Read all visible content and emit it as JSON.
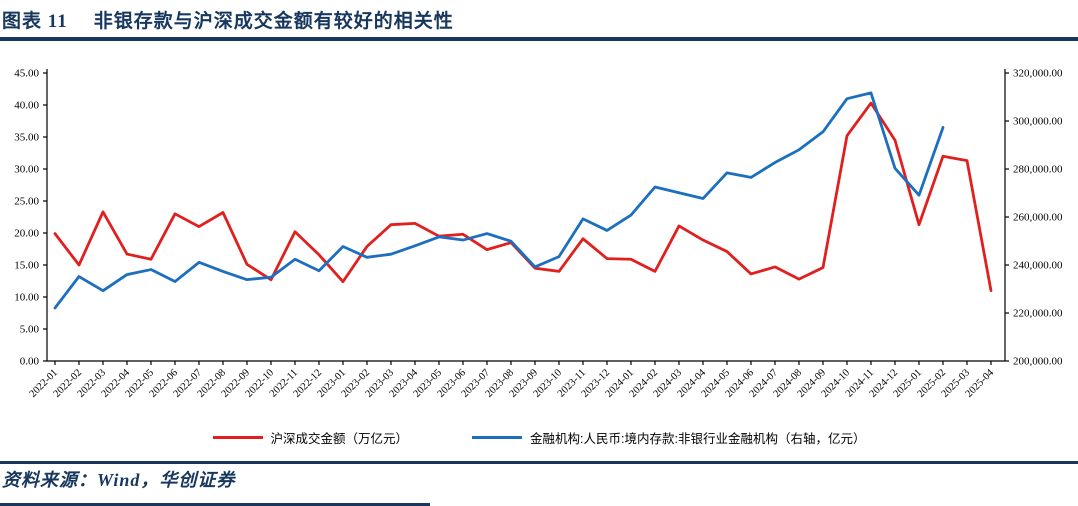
{
  "header": {
    "chart_label": "图表 11",
    "title": "非银存款与沪深成交金额有较好的相关性"
  },
  "footer": {
    "source": "资料来源：Wind，华创证券"
  },
  "colors": {
    "accent_navy": "#17375E",
    "red_series": "#E0201E",
    "blue_series": "#1C6FBF",
    "axis_line": "#000000"
  },
  "chart_data": {
    "type": "line",
    "title": "非银存款与沪深成交金额有较好的相关性",
    "grid": false,
    "legend_position": "bottom",
    "categories": [
      "2022-01",
      "2022-02",
      "2022-03",
      "2022-04",
      "2022-05",
      "2022-06",
      "2022-07",
      "2022-08",
      "2022-09",
      "2022-10",
      "2022-11",
      "2022-12",
      "2023-01",
      "2023-02",
      "2023-03",
      "2023-04",
      "2023-05",
      "2023-06",
      "2023-07",
      "2023-08",
      "2023-09",
      "2023-10",
      "2023-11",
      "2023-12",
      "2024-01",
      "2024-02",
      "2024-03",
      "2024-04",
      "2024-05",
      "2024-06",
      "2024-07",
      "2024-08",
      "2024-09",
      "2024-10",
      "2024-11",
      "2024-12",
      "2025-01",
      "2025-02",
      "2025-03",
      "2025-04"
    ],
    "left_axis": {
      "min": 0,
      "max": 45,
      "tick_step": 5,
      "tick_labels": [
        "0.00",
        "5.00",
        "10.00",
        "15.00",
        "20.00",
        "25.00",
        "30.00",
        "35.00",
        "40.00",
        "45.00"
      ]
    },
    "right_axis": {
      "min": 200000,
      "max": 320000,
      "tick_step": 20000,
      "tick_labels": [
        "200,000.00",
        "220,000.00",
        "240,000.00",
        "260,000.00",
        "280,000.00",
        "300,000.00",
        "320,000.00"
      ]
    },
    "series": [
      {
        "name": "沪深成交金额（万亿元）",
        "axis": "left",
        "color": "#E0201E",
        "values": [
          19.9,
          15.0,
          23.3,
          16.7,
          15.9,
          23.0,
          21.0,
          23.2,
          15.1,
          12.7,
          20.2,
          16.6,
          12.4,
          17.9,
          21.3,
          21.5,
          19.5,
          19.8,
          17.4,
          18.5,
          14.5,
          14.0,
          19.1,
          16.0,
          15.9,
          14.0,
          21.1,
          18.9,
          17.1,
          13.6,
          14.7,
          12.8,
          14.6,
          35.2,
          40.3,
          34.5,
          21.3,
          32.0,
          31.3,
          11.0
        ]
      },
      {
        "name": "金融机构:人民币:境内存款:非银行业金融机构（右轴，亿元）",
        "axis": "right",
        "color": "#1C6FBF",
        "values": [
          222100,
          235200,
          229300,
          236000,
          238100,
          233100,
          241100,
          237300,
          233900,
          234900,
          242400,
          237600,
          247700,
          243200,
          244500,
          248000,
          251700,
          250400,
          253100,
          249900,
          239200,
          243500,
          259200,
          254400,
          260800,
          272500,
          270100,
          267700,
          278400,
          276500,
          282700,
          288000,
          295500,
          309300,
          311700,
          280300,
          269100,
          297300,
          null,
          null
        ]
      }
    ]
  }
}
